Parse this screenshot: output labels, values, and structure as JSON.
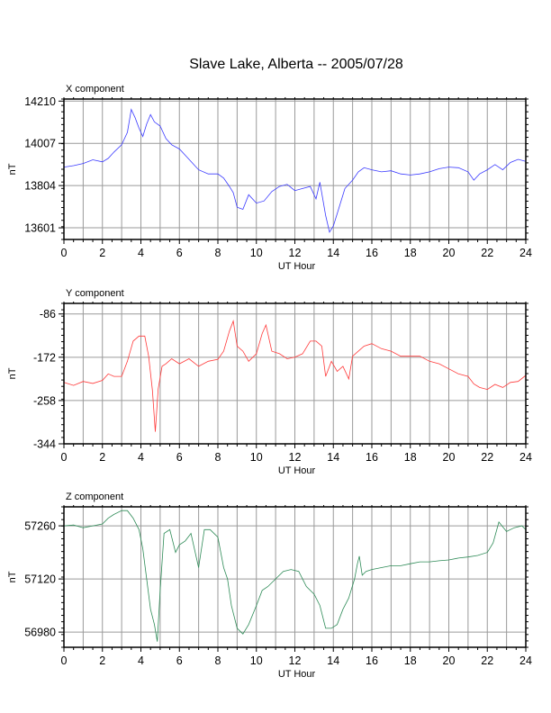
{
  "title": "Slave Lake, Alberta -- 2005/07/28",
  "chart_data": [
    {
      "type": "line",
      "name": "X component",
      "xlabel": "UT Hour",
      "ylabel": "nT",
      "color": "#3a3aff",
      "xlim": [
        0,
        24
      ],
      "ylim": [
        13545,
        14220
      ],
      "yticks": [
        13601,
        13804,
        14007,
        14210
      ],
      "xticks": [
        0,
        2,
        4,
        6,
        8,
        10,
        12,
        14,
        16,
        18,
        20,
        22,
        24
      ],
      "grid": true,
      "x": [
        0,
        0.5,
        1,
        1.5,
        2,
        2.3,
        2.6,
        3,
        3.3,
        3.5,
        3.7,
        3.9,
        4.1,
        4.3,
        4.5,
        4.7,
        5,
        5.3,
        5.6,
        6,
        6.3,
        6.7,
        7,
        7.5,
        8,
        8.3,
        8.6,
        8.8,
        9,
        9.3,
        9.6,
        10,
        10.4,
        10.8,
        11.2,
        11.6,
        12,
        12.4,
        12.8,
        13.1,
        13.3,
        13.6,
        13.8,
        14,
        14.3,
        14.6,
        15,
        15.3,
        15.6,
        16,
        16.5,
        17,
        17.5,
        18,
        18.5,
        19,
        19.5,
        20,
        20.5,
        21,
        21.3,
        21.6,
        22,
        22.4,
        22.8,
        23.2,
        23.6,
        24
      ],
      "y": [
        13893,
        13900,
        13910,
        13928,
        13918,
        13935,
        13965,
        14000,
        14060,
        14170,
        14130,
        14080,
        14040,
        14100,
        14145,
        14110,
        14090,
        14030,
        14000,
        13980,
        13950,
        13910,
        13880,
        13860,
        13860,
        13840,
        13800,
        13770,
        13700,
        13690,
        13760,
        13720,
        13730,
        13775,
        13800,
        13810,
        13780,
        13790,
        13800,
        13740,
        13820,
        13660,
        13580,
        13610,
        13700,
        13790,
        13830,
        13870,
        13890,
        13880,
        13870,
        13875,
        13860,
        13855,
        13860,
        13870,
        13885,
        13893,
        13890,
        13870,
        13830,
        13860,
        13880,
        13905,
        13880,
        13915,
        13930,
        13920
      ]
    },
    {
      "type": "line",
      "name": "Y component",
      "xlabel": "UT Hour",
      "ylabel": "nT",
      "color": "#ff3a3a",
      "xlim": [
        0,
        24
      ],
      "ylim": [
        -344,
        -65
      ],
      "yticks": [
        -344,
        -258,
        -172,
        -86
      ],
      "xticks": [
        0,
        2,
        4,
        6,
        8,
        10,
        12,
        14,
        16,
        18,
        20,
        22,
        24
      ],
      "grid": true,
      "x": [
        0,
        0.5,
        1,
        1.5,
        2,
        2.3,
        2.6,
        3,
        3.3,
        3.6,
        3.9,
        4.2,
        4.4,
        4.6,
        4.75,
        4.9,
        5.1,
        5.3,
        5.6,
        6,
        6.5,
        7,
        7.5,
        8,
        8.3,
        8.6,
        8.8,
        9,
        9.3,
        9.6,
        10,
        10.3,
        10.5,
        10.8,
        11.2,
        11.6,
        12,
        12.4,
        12.8,
        13.1,
        13.4,
        13.6,
        13.9,
        14.2,
        14.5,
        14.8,
        15,
        15.3,
        15.6,
        16,
        16.5,
        17,
        17.5,
        18,
        18.5,
        19,
        19.5,
        20,
        20.5,
        21,
        21.3,
        21.6,
        22,
        22.4,
        22.8,
        23.2,
        23.6,
        24
      ],
      "y": [
        -222,
        -228,
        -220,
        -224,
        -218,
        -205,
        -210,
        -210,
        -180,
        -140,
        -130,
        -130,
        -170,
        -238,
        -320,
        -235,
        -190,
        -185,
        -175,
        -185,
        -175,
        -190,
        -180,
        -176,
        -160,
        -120,
        -100,
        -150,
        -160,
        -180,
        -165,
        -125,
        -108,
        -160,
        -165,
        -175,
        -172,
        -165,
        -140,
        -140,
        -150,
        -210,
        -180,
        -200,
        -190,
        -215,
        -170,
        -160,
        -150,
        -145,
        -155,
        -160,
        -170,
        -170,
        -170,
        -180,
        -185,
        -195,
        -205,
        -210,
        -225,
        -232,
        -236,
        -226,
        -232,
        -222,
        -220,
        -208
      ]
    },
    {
      "type": "line",
      "name": "Z component",
      "xlabel": "UT Hour",
      "ylabel": "nT",
      "color": "#2e8b57",
      "xlim": [
        0,
        24
      ],
      "ylim": [
        56940,
        57310
      ],
      "yticks": [
        56980,
        57120,
        57260
      ],
      "xticks": [
        0,
        2,
        4,
        6,
        8,
        10,
        12,
        14,
        16,
        18,
        20,
        22,
        24
      ],
      "grid": true,
      "x": [
        0,
        0.5,
        1,
        1.5,
        2,
        2.3,
        2.6,
        3,
        3.3,
        3.6,
        3.9,
        4.1,
        4.3,
        4.5,
        4.7,
        4.85,
        5,
        5.2,
        5.5,
        5.8,
        6,
        6.3,
        6.6,
        7,
        7.3,
        7.6,
        8,
        8.3,
        8.5,
        8.7,
        9,
        9.3,
        9.6,
        10,
        10.3,
        10.6,
        11,
        11.4,
        11.8,
        12.2,
        12.6,
        13,
        13.3,
        13.6,
        13.9,
        14.2,
        14.5,
        14.8,
        15.1,
        15.25,
        15.35,
        15.5,
        15.7,
        16,
        16.5,
        17,
        17.5,
        18,
        18.5,
        19,
        19.5,
        20,
        20.5,
        21,
        21.5,
        22,
        22.3,
        22.6,
        23,
        23.4,
        23.8,
        24
      ],
      "y": [
        57260,
        57262,
        57255,
        57260,
        57265,
        57280,
        57290,
        57300,
        57300,
        57280,
        57250,
        57200,
        57120,
        57040,
        57000,
        56955,
        57090,
        57240,
        57250,
        57190,
        57210,
        57220,
        57240,
        57150,
        57250,
        57250,
        57230,
        57150,
        57120,
        57050,
        56990,
        56975,
        57000,
        57050,
        57090,
        57100,
        57120,
        57140,
        57145,
        57140,
        57100,
        57080,
        57050,
        56990,
        56990,
        57000,
        57040,
        57070,
        57120,
        57160,
        57180,
        57130,
        57140,
        57145,
        57150,
        57155,
        57155,
        57160,
        57165,
        57165,
        57168,
        57170,
        57175,
        57178,
        57182,
        57190,
        57215,
        57270,
        57245,
        57255,
        57260,
        57250
      ]
    }
  ]
}
